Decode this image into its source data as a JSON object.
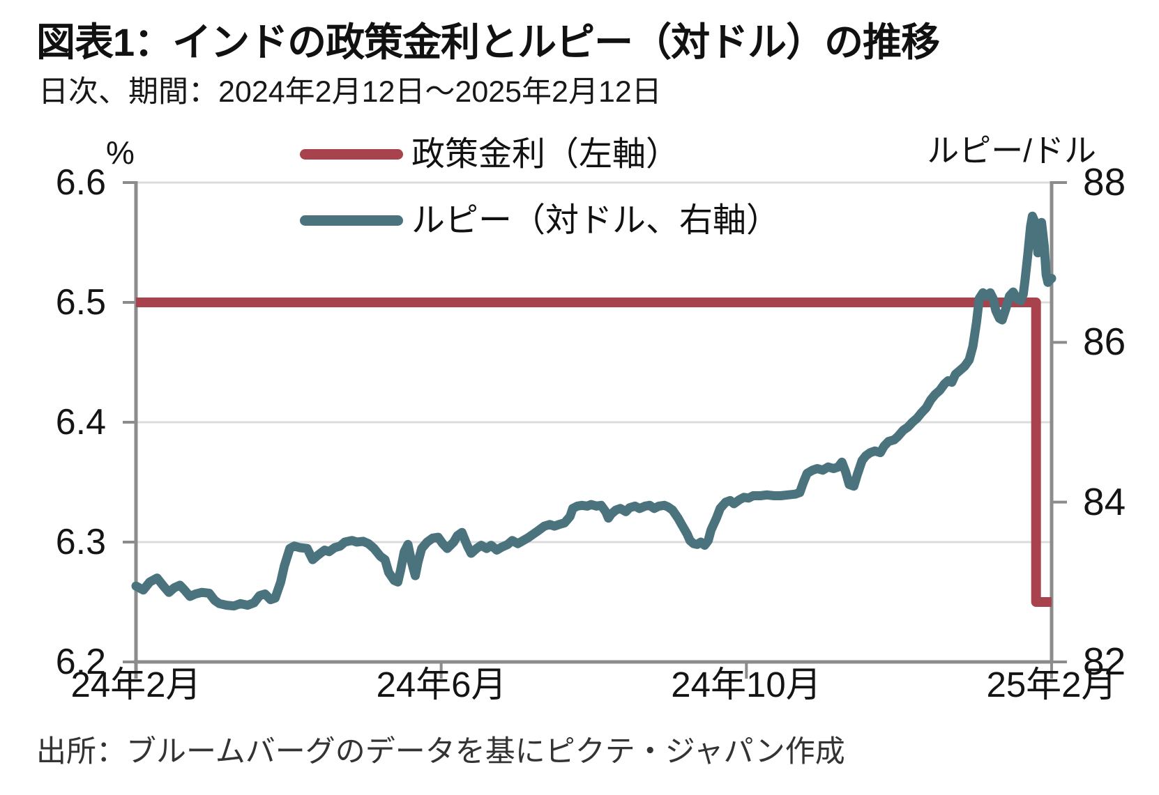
{
  "header": {
    "title": "図表1：インドの政策金利とルピー（対ドル）の推移",
    "subtitle": "日次、期間：2024年2月12日～2025年2月12日"
  },
  "legend": {
    "items": [
      {
        "label": "政策金利（左軸）",
        "color": "#a8424c"
      },
      {
        "label": "ルピー（対ドル、右軸）",
        "color": "#4a737d"
      }
    ]
  },
  "left_axis": {
    "unit": "%",
    "ticks": [
      "6.6",
      "6.5",
      "6.4",
      "6.3",
      "6.2"
    ]
  },
  "right_axis": {
    "unit": "ルピー/ドル",
    "ticks": [
      "88",
      "86",
      "84",
      "82"
    ]
  },
  "x_axis": {
    "ticks": [
      "24年2月",
      "24年6月",
      "24年10月",
      "25年2月"
    ]
  },
  "footer": {
    "source": "出所：ブルームバーグのデータを基にピクテ・ジャパン作成"
  },
  "colors": {
    "policy_line": "#a8424c",
    "rupee_line": "#4a737d",
    "grid": "#dcdcdc",
    "axis": "#8c8c8c"
  },
  "chart_data": {
    "type": "line",
    "title": "図表1：インドの政策金利とルピー（対ドル）の推移",
    "subtitle": "日次、期間：2024年2月12日～2025年2月12日",
    "x_note": "x = fraction of axis span, 0 = 2024年2月12日, 1 = 2025年2月12日",
    "x_tick_labels": [
      "24年2月",
      "24年6月",
      "24年10月",
      "25年2月"
    ],
    "left_ylabel": "%",
    "right_ylabel": "ルピー/ドル",
    "left_ylim": [
      6.2,
      6.6
    ],
    "right_ylim": [
      82,
      88
    ],
    "grid": "horizontal",
    "legend_position": "top-inside",
    "series": [
      {
        "name": "政策金利（左軸）",
        "axis": "left",
        "color": "#a8424c",
        "points": [
          [
            0.0,
            6.5
          ],
          [
            0.983,
            6.5
          ],
          [
            0.983,
            6.25
          ],
          [
            1.0,
            6.25
          ]
        ]
      },
      {
        "name": "ルピー（対ドル、右軸）",
        "axis": "right",
        "color": "#4a737d",
        "points": [
          [
            0.0,
            82.95
          ],
          [
            0.008,
            82.9
          ],
          [
            0.015,
            83.0
          ],
          [
            0.023,
            83.05
          ],
          [
            0.03,
            82.95
          ],
          [
            0.036,
            82.87
          ],
          [
            0.042,
            82.93
          ],
          [
            0.048,
            82.96
          ],
          [
            0.053,
            82.9
          ],
          [
            0.059,
            82.82
          ],
          [
            0.065,
            82.85
          ],
          [
            0.072,
            82.87
          ],
          [
            0.08,
            82.86
          ],
          [
            0.086,
            82.77
          ],
          [
            0.091,
            82.73
          ],
          [
            0.099,
            82.71
          ],
          [
            0.107,
            82.7
          ],
          [
            0.114,
            82.73
          ],
          [
            0.122,
            82.71
          ],
          [
            0.129,
            82.74
          ],
          [
            0.135,
            82.83
          ],
          [
            0.141,
            82.85
          ],
          [
            0.147,
            82.78
          ],
          [
            0.152,
            82.8
          ],
          [
            0.158,
            83.0
          ],
          [
            0.162,
            83.2
          ],
          [
            0.168,
            83.42
          ],
          [
            0.173,
            83.45
          ],
          [
            0.179,
            83.43
          ],
          [
            0.187,
            83.42
          ],
          [
            0.193,
            83.28
          ],
          [
            0.198,
            83.33
          ],
          [
            0.206,
            83.4
          ],
          [
            0.211,
            83.38
          ],
          [
            0.217,
            83.43
          ],
          [
            0.223,
            83.45
          ],
          [
            0.228,
            83.5
          ],
          [
            0.236,
            83.52
          ],
          [
            0.241,
            83.5
          ],
          [
            0.248,
            83.51
          ],
          [
            0.254,
            83.48
          ],
          [
            0.26,
            83.42
          ],
          [
            0.267,
            83.32
          ],
          [
            0.272,
            83.28
          ],
          [
            0.276,
            83.12
          ],
          [
            0.282,
            83.02
          ],
          [
            0.286,
            83.0
          ],
          [
            0.289,
            83.15
          ],
          [
            0.293,
            83.38
          ],
          [
            0.297,
            83.47
          ],
          [
            0.301,
            83.25
          ],
          [
            0.305,
            83.08
          ],
          [
            0.308,
            83.25
          ],
          [
            0.312,
            83.42
          ],
          [
            0.318,
            83.5
          ],
          [
            0.324,
            83.55
          ],
          [
            0.33,
            83.56
          ],
          [
            0.335,
            83.48
          ],
          [
            0.34,
            83.42
          ],
          [
            0.347,
            83.5
          ],
          [
            0.351,
            83.58
          ],
          [
            0.356,
            83.62
          ],
          [
            0.362,
            83.45
          ],
          [
            0.366,
            83.36
          ],
          [
            0.372,
            83.42
          ],
          [
            0.377,
            83.46
          ],
          [
            0.383,
            83.42
          ],
          [
            0.388,
            83.46
          ],
          [
            0.394,
            83.4
          ],
          [
            0.4,
            83.44
          ],
          [
            0.406,
            83.47
          ],
          [
            0.411,
            83.52
          ],
          [
            0.417,
            83.48
          ],
          [
            0.423,
            83.52
          ],
          [
            0.429,
            83.56
          ],
          [
            0.434,
            83.6
          ],
          [
            0.439,
            83.64
          ],
          [
            0.446,
            83.7
          ],
          [
            0.452,
            83.72
          ],
          [
            0.457,
            83.7
          ],
          [
            0.462,
            83.72
          ],
          [
            0.468,
            83.74
          ],
          [
            0.474,
            83.82
          ],
          [
            0.477,
            83.92
          ],
          [
            0.482,
            83.95
          ],
          [
            0.487,
            83.96
          ],
          [
            0.493,
            83.95
          ],
          [
            0.497,
            83.97
          ],
          [
            0.503,
            83.95
          ],
          [
            0.508,
            83.96
          ],
          [
            0.513,
            83.88
          ],
          [
            0.516,
            83.8
          ],
          [
            0.519,
            83.85
          ],
          [
            0.524,
            83.9
          ],
          [
            0.529,
            83.92
          ],
          [
            0.535,
            83.88
          ],
          [
            0.539,
            83.93
          ],
          [
            0.545,
            83.95
          ],
          [
            0.55,
            83.92
          ],
          [
            0.556,
            83.95
          ],
          [
            0.561,
            83.96
          ],
          [
            0.566,
            83.92
          ],
          [
            0.571,
            83.95
          ],
          [
            0.577,
            83.96
          ],
          [
            0.581,
            83.94
          ],
          [
            0.586,
            83.9
          ],
          [
            0.592,
            83.8
          ],
          [
            0.596,
            83.72
          ],
          [
            0.602,
            83.6
          ],
          [
            0.605,
            83.52
          ],
          [
            0.609,
            83.48
          ],
          [
            0.613,
            83.47
          ],
          [
            0.617,
            83.5
          ],
          [
            0.621,
            83.46
          ],
          [
            0.625,
            83.52
          ],
          [
            0.628,
            83.65
          ],
          [
            0.634,
            83.8
          ],
          [
            0.638,
            83.92
          ],
          [
            0.644,
            84.0
          ],
          [
            0.649,
            84.02
          ],
          [
            0.653,
            83.98
          ],
          [
            0.659,
            84.03
          ],
          [
            0.664,
            84.06
          ],
          [
            0.669,
            84.05
          ],
          [
            0.674,
            84.08
          ],
          [
            0.682,
            84.08
          ],
          [
            0.689,
            84.09
          ],
          [
            0.697,
            84.08
          ],
          [
            0.704,
            84.08
          ],
          [
            0.712,
            84.09
          ],
          [
            0.72,
            84.1
          ],
          [
            0.725,
            84.12
          ],
          [
            0.729,
            84.25
          ],
          [
            0.733,
            84.36
          ],
          [
            0.739,
            84.4
          ],
          [
            0.744,
            84.42
          ],
          [
            0.75,
            84.4
          ],
          [
            0.756,
            84.44
          ],
          [
            0.762,
            84.42
          ],
          [
            0.767,
            84.44
          ],
          [
            0.771,
            84.5
          ],
          [
            0.775,
            84.38
          ],
          [
            0.779,
            84.22
          ],
          [
            0.784,
            84.2
          ],
          [
            0.788,
            84.35
          ],
          [
            0.793,
            84.52
          ],
          [
            0.797,
            84.58
          ],
          [
            0.802,
            84.62
          ],
          [
            0.807,
            84.64
          ],
          [
            0.813,
            84.62
          ],
          [
            0.817,
            84.7
          ],
          [
            0.822,
            84.76
          ],
          [
            0.828,
            84.78
          ],
          [
            0.832,
            84.82
          ],
          [
            0.838,
            84.9
          ],
          [
            0.843,
            84.94
          ],
          [
            0.848,
            85.0
          ],
          [
            0.853,
            85.05
          ],
          [
            0.858,
            85.12
          ],
          [
            0.863,
            85.18
          ],
          [
            0.868,
            85.28
          ],
          [
            0.873,
            85.35
          ],
          [
            0.878,
            85.4
          ],
          [
            0.883,
            85.48
          ],
          [
            0.887,
            85.52
          ],
          [
            0.891,
            85.5
          ],
          [
            0.895,
            85.6
          ],
          [
            0.9,
            85.65
          ],
          [
            0.905,
            85.7
          ],
          [
            0.91,
            85.78
          ],
          [
            0.914,
            85.95
          ],
          [
            0.918,
            86.25
          ],
          [
            0.921,
            86.55
          ],
          [
            0.925,
            86.62
          ],
          [
            0.929,
            86.58
          ],
          [
            0.933,
            86.62
          ],
          [
            0.936,
            86.55
          ],
          [
            0.939,
            86.4
          ],
          [
            0.943,
            86.3
          ],
          [
            0.946,
            86.28
          ],
          [
            0.95,
            86.42
          ],
          [
            0.954,
            86.58
          ],
          [
            0.958,
            86.63
          ],
          [
            0.962,
            86.55
          ],
          [
            0.966,
            86.52
          ],
          [
            0.969,
            86.6
          ],
          [
            0.971,
            86.78
          ],
          [
            0.974,
            87.1
          ],
          [
            0.977,
            87.45
          ],
          [
            0.979,
            87.58
          ],
          [
            0.982,
            87.5
          ],
          [
            0.985,
            87.12
          ],
          [
            0.987,
            87.35
          ],
          [
            0.989,
            87.5
          ],
          [
            0.992,
            87.2
          ],
          [
            0.994,
            86.85
          ],
          [
            0.996,
            86.75
          ],
          [
            0.998,
            86.78
          ],
          [
            1.0,
            86.8
          ]
        ]
      }
    ]
  }
}
